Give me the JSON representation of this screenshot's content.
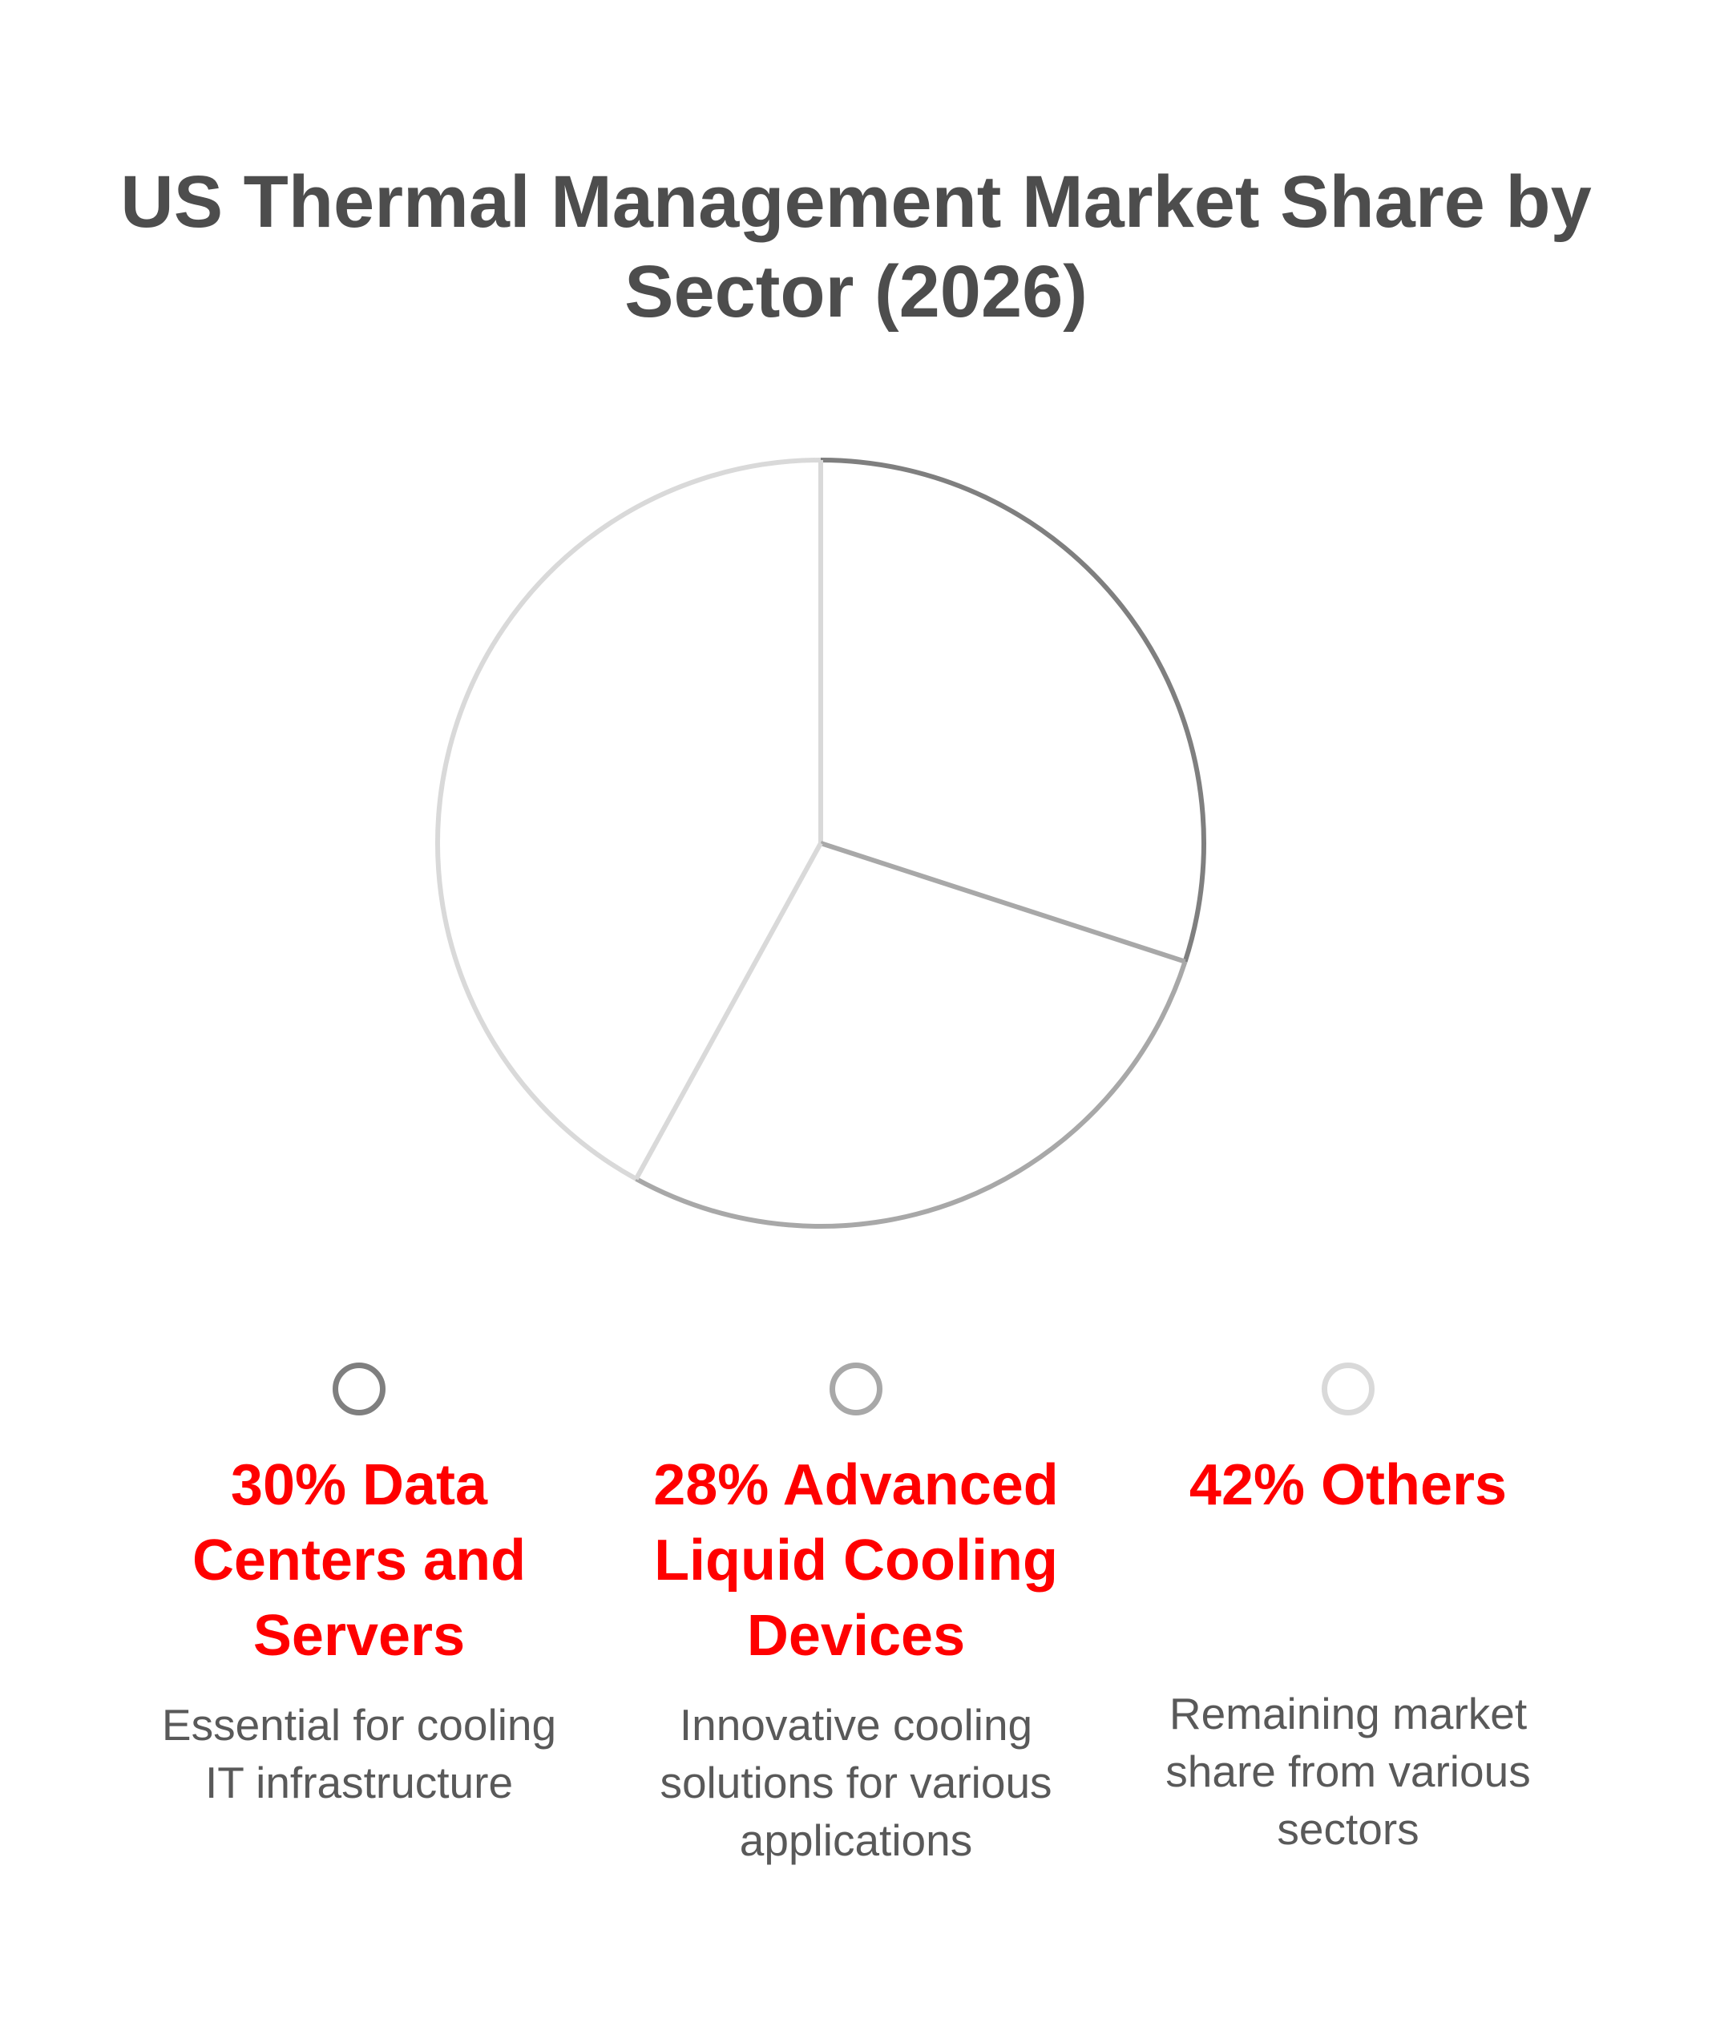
{
  "chart_data": {
    "type": "pie",
    "title_lines": [
      "US Thermal Management Market Share by",
      "Sector (2026)"
    ],
    "slices": [
      {
        "value": 30,
        "label_lines": [
          "30% Data",
          "Centers and",
          "Servers"
        ],
        "description_lines": [
          "Essential for cooling",
          "IT infrastructure"
        ],
        "color": "#7f7f7f"
      },
      {
        "value": 28,
        "label_lines": [
          "28% Advanced",
          "Liquid Cooling",
          "Devices"
        ],
        "description_lines": [
          "Innovative cooling",
          "solutions for various",
          "applications"
        ],
        "color": "#a8a8a8"
      },
      {
        "value": 42,
        "label_lines": [
          "42% Others"
        ],
        "description_lines": [
          "Remaining market",
          "share from various",
          "sectors"
        ],
        "color": "#d9d9d9"
      }
    ],
    "label_color": "#ff0000",
    "legend_placement": "bottom"
  }
}
